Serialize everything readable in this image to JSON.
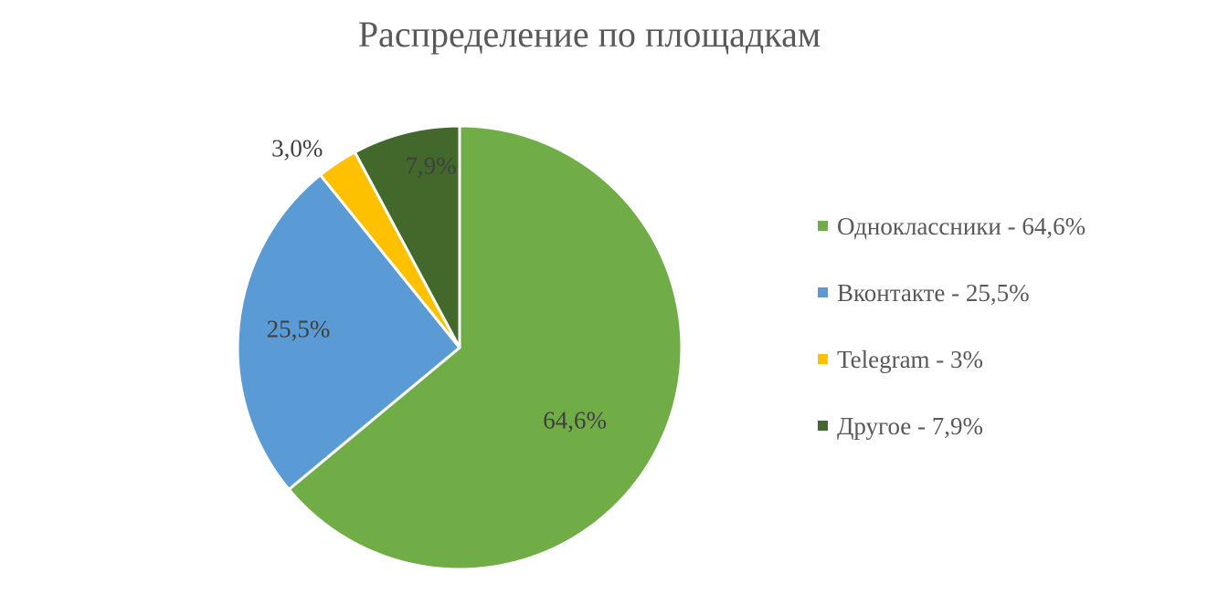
{
  "chart_data": {
    "type": "pie",
    "title": "Распределение по площадкам",
    "start_angle_deg": 0,
    "direction": "clockwise",
    "legend_position": "right",
    "slices": [
      {
        "name": "Одноклассники",
        "value": 64.6,
        "label": "64,6%",
        "legend": "Одноклассники - 64,6%",
        "color": "#70AD47"
      },
      {
        "name": "Вконтакте",
        "value": 25.5,
        "label": "25,5%",
        "legend": "Вконтакте - 25,5%",
        "color": "#5B9BD5"
      },
      {
        "name": "Telegram",
        "value": 3.0,
        "label": "3,0%",
        "legend": "Telegram - 3%",
        "color": "#FFC000"
      },
      {
        "name": "Другое",
        "value": 7.9,
        "label": "7,9%",
        "legend": "Другое - 7,9%",
        "color": "#43682B"
      }
    ]
  }
}
